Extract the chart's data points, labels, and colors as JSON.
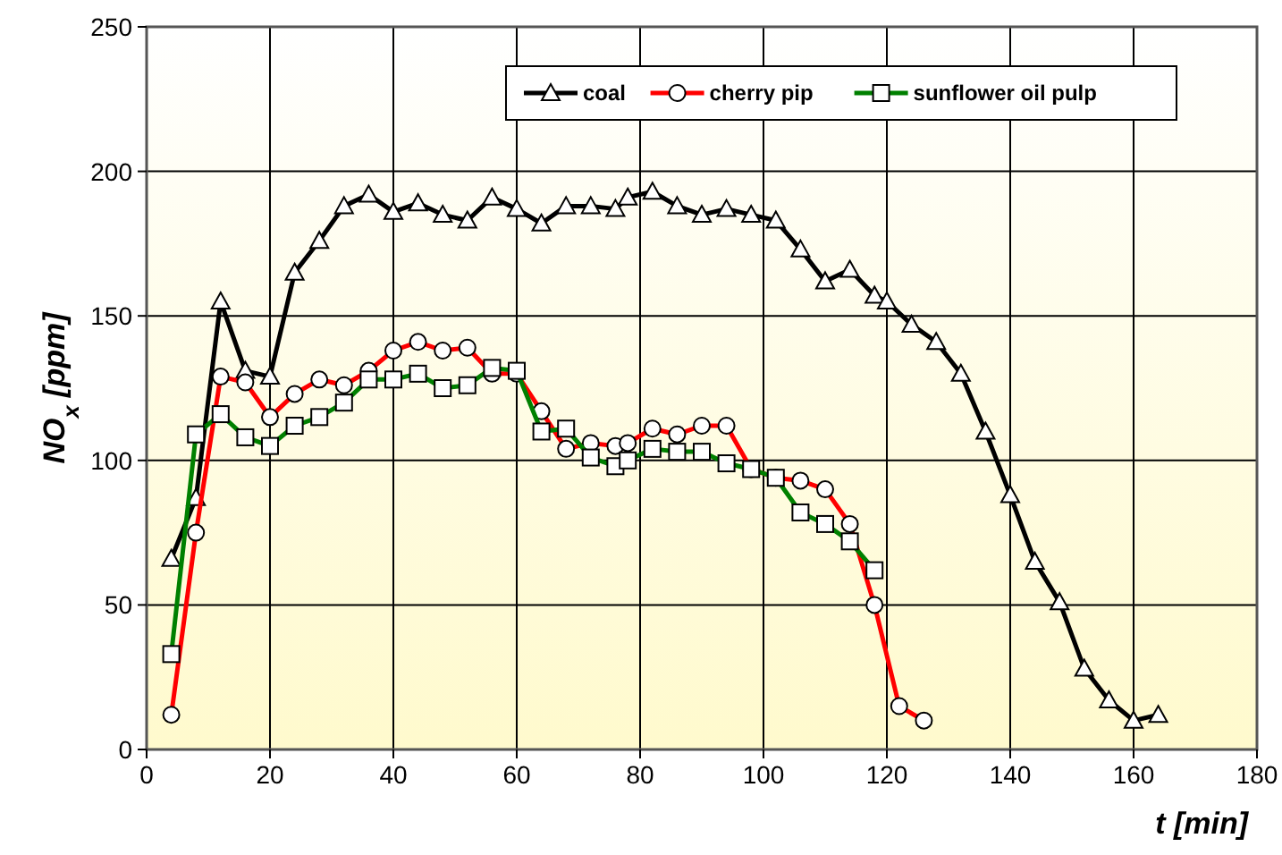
{
  "chart_data": {
    "type": "line",
    "xlabel": "t  [min]",
    "ylabel": "NO$_{x}$ [ppm]",
    "xlim": [
      0,
      180
    ],
    "xticks": [
      0,
      20,
      40,
      60,
      80,
      100,
      120,
      140,
      160,
      180
    ],
    "ylim": [
      0,
      250
    ],
    "yticks": [
      0,
      50,
      100,
      150,
      200,
      250
    ],
    "grid": true,
    "legend": "top right",
    "line_style": "solid",
    "series": [
      {
        "name": "coal",
        "color": "#000000",
        "marker": "triangle",
        "x": [
          4,
          8,
          12,
          16,
          20,
          24,
          28,
          32,
          36,
          40,
          44,
          48,
          52,
          56,
          60,
          64,
          68,
          72,
          76,
          78,
          82,
          86,
          90,
          94,
          98,
          102,
          106,
          110,
          114,
          118,
          120,
          124,
          128,
          132,
          136,
          140,
          144,
          148,
          152,
          156,
          160,
          164
        ],
        "values": [
          66,
          87,
          155,
          131,
          129,
          165,
          176,
          188,
          192,
          186,
          189,
          185,
          183,
          191,
          187,
          182,
          188,
          188,
          187,
          191,
          193,
          188,
          185,
          187,
          185,
          183,
          173,
          162,
          166,
          157,
          155,
          147,
          141,
          130,
          110,
          88,
          65,
          51,
          28,
          17,
          10,
          12
        ]
      },
      {
        "name": "cherry pip",
        "color": "#ff0000",
        "marker": "circle",
        "x": [
          4,
          8,
          12,
          16,
          20,
          24,
          28,
          32,
          36,
          40,
          44,
          48,
          52,
          56,
          60,
          64,
          68,
          72,
          76,
          78,
          82,
          86,
          90,
          94,
          98,
          102,
          106,
          110,
          114,
          118,
          122,
          126
        ],
        "values": [
          12,
          75,
          129,
          127,
          115,
          123,
          128,
          126,
          131,
          138,
          141,
          138,
          139,
          130,
          130,
          117,
          104,
          106,
          105,
          106,
          111,
          109,
          112,
          112,
          97,
          94,
          93,
          90,
          78,
          50,
          15,
          10
        ]
      },
      {
        "name": "sunflower oil pulp",
        "color": "#008000",
        "marker": "square",
        "x": [
          4,
          8,
          12,
          16,
          20,
          24,
          28,
          32,
          36,
          40,
          44,
          48,
          52,
          56,
          60,
          64,
          68,
          72,
          76,
          78,
          82,
          86,
          90,
          94,
          98,
          102,
          106,
          110,
          114,
          118
        ],
        "values": [
          33,
          109,
          116,
          108,
          105,
          112,
          115,
          120,
          128,
          128,
          130,
          125,
          126,
          132,
          131,
          110,
          111,
          101,
          98,
          100,
          104,
          103,
          103,
          99,
          97,
          94,
          82,
          78,
          72,
          62
        ]
      }
    ]
  }
}
